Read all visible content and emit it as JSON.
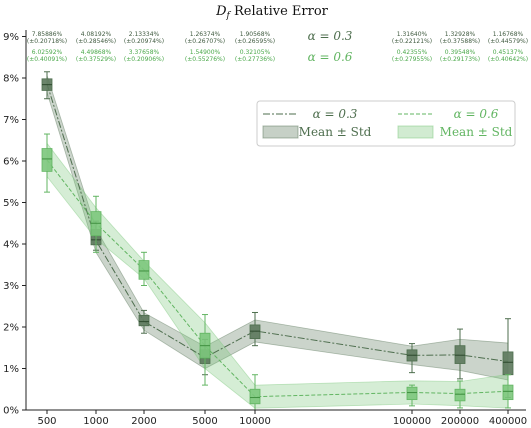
{
  "chart_data": {
    "type": "box",
    "title": "D_f Relative Error",
    "title_main": "D",
    "title_sub": "f",
    "title_rest": " Relative Error",
    "xlabel": "",
    "ylabel": "",
    "categories": [
      "500",
      "1000",
      "2000",
      "5000",
      "10000",
      "100000",
      "200000",
      "400000"
    ],
    "ylim": [
      0,
      9.4
    ],
    "yticks": [
      0,
      1,
      2,
      3,
      4,
      5,
      6,
      7,
      8,
      9
    ],
    "ytick_labels": [
      "0%",
      "1%",
      "2%",
      "3%",
      "4%",
      "5%",
      "6%",
      "7%",
      "8%",
      "9%"
    ],
    "grid": false,
    "legend_position": "upper right",
    "colors": {
      "a03": "#4e6e4e",
      "a03_fill": "#5c785c",
      "a06": "#62b562",
      "a06_fill": "#7cc77c"
    },
    "series": [
      {
        "name": "α = 0.3",
        "line_label": "α = 0.3",
        "band_label": "Mean ± Std",
        "mean": [
          7.85886,
          4.08192,
          2.13334,
          1.26374,
          1.90568,
          1.3164,
          1.32928,
          1.16768
        ],
        "std": [
          0.20718,
          0.28546,
          0.20974,
          0.26707,
          0.26595,
          0.22121,
          0.37588,
          0.44579
        ],
        "mean_labels": [
          "7.85886%",
          "4.08192%",
          "2.13334%",
          "1.26374%",
          "1.90568%",
          "1.31640%",
          "1.32928%",
          "1.16768%"
        ],
        "std_labels": [
          "(±0.20718%)",
          "(±0.28546%)",
          "(±0.20974%)",
          "(±0.26707%)",
          "(±0.26595%)",
          "(±0.22121%)",
          "(±0.37588%)",
          "(±0.44579%)"
        ],
        "box": [
          {
            "q1": 7.7,
            "median": 7.84,
            "q3": 7.98,
            "whislo": 7.5,
            "whishi": 8.15
          },
          {
            "q1": 3.98,
            "median": 4.1,
            "q3": 4.35,
            "whislo": 3.85,
            "whishi": 4.55
          },
          {
            "q1": 2.03,
            "median": 2.13,
            "q3": 2.28,
            "whislo": 1.85,
            "whishi": 2.4
          },
          {
            "q1": 1.12,
            "median": 1.25,
            "q3": 1.45,
            "whislo": 0.85,
            "whishi": 1.7
          },
          {
            "q1": 1.72,
            "median": 1.9,
            "q3": 2.05,
            "whislo": 1.55,
            "whishi": 2.35
          },
          {
            "q1": 1.18,
            "median": 1.32,
            "q3": 1.45,
            "whislo": 0.9,
            "whishi": 1.6
          },
          {
            "q1": 1.12,
            "median": 1.32,
            "q3": 1.55,
            "whislo": 0.75,
            "whishi": 1.95
          },
          {
            "q1": 0.85,
            "median": 1.15,
            "q3": 1.4,
            "whislo": 0.3,
            "whishi": 2.2
          }
        ]
      },
      {
        "name": "α = 0.6",
        "line_label": "α = 0.6",
        "band_label": "Mean ± Std",
        "mean": [
          6.02592,
          4.49868,
          3.37658,
          1.549,
          0.32105,
          0.42355,
          0.39548,
          0.45137
        ],
        "std": [
          0.40091,
          0.37529,
          0.20906,
          0.55276,
          0.27736,
          0.27955,
          0.29173,
          0.40642
        ],
        "mean_labels": [
          "6.02592%",
          "4.49868%",
          "3.37658%",
          "1.54900%",
          "0.32105%",
          "0.42355%",
          "0.39548%",
          "0.45137%"
        ],
        "std_labels": [
          "(±0.40091%)",
          "(±0.37529%)",
          "(±0.20906%)",
          "(±0.55276%)",
          "(±0.27736%)",
          "(±0.27955%)",
          "(±0.29173%)",
          "(±0.40642%)"
        ],
        "box": [
          {
            "q1": 5.75,
            "median": 6.05,
            "q3": 6.3,
            "whislo": 5.25,
            "whishi": 6.65
          },
          {
            "q1": 4.2,
            "median": 4.5,
            "q3": 4.78,
            "whislo": 3.8,
            "whishi": 5.15
          },
          {
            "q1": 3.15,
            "median": 3.35,
            "q3": 3.6,
            "whislo": 3.0,
            "whishi": 3.8
          },
          {
            "q1": 1.25,
            "median": 1.55,
            "q3": 1.85,
            "whislo": 0.6,
            "whishi": 2.3
          },
          {
            "q1": 0.15,
            "median": 0.3,
            "q3": 0.5,
            "whislo": 0.0,
            "whishi": 0.85
          },
          {
            "q1": 0.25,
            "median": 0.42,
            "q3": 0.55,
            "whislo": 0.1,
            "whishi": 0.6
          },
          {
            "q1": 0.22,
            "median": 0.38,
            "q3": 0.5,
            "whislo": 0.05,
            "whishi": 0.7
          },
          {
            "q1": 0.25,
            "median": 0.45,
            "q3": 0.6,
            "whislo": 0.05,
            "whishi": 0.85
          }
        ]
      }
    ]
  }
}
